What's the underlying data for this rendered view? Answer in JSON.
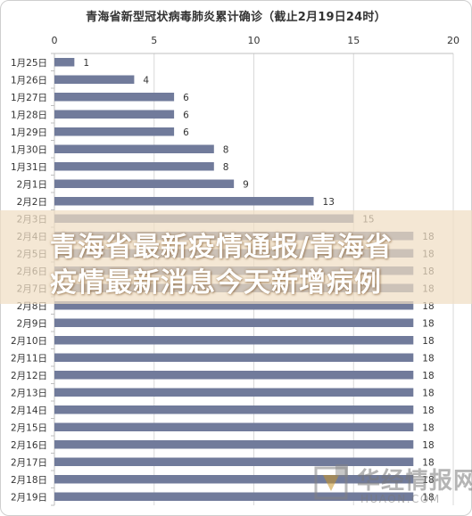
{
  "chart_data": {
    "type": "bar",
    "orientation": "horizontal",
    "title": "青海省新型冠状病毒肺炎累计确诊（截止2月19日24时）",
    "xlabel": "",
    "ylabel": "",
    "xlim": [
      0,
      20
    ],
    "ticks": [
      0,
      5,
      10,
      15,
      20
    ],
    "grid": true,
    "legend": "none",
    "categories": [
      "1月25日",
      "1月26日",
      "1月27日",
      "1月28日",
      "1月29日",
      "1月30日",
      "1月31日",
      "2月1日",
      "2月2日",
      "2月3日",
      "2月4日",
      "2月5日",
      "2月6日",
      "2月7日",
      "2月8日",
      "2月9日",
      "2月10日",
      "2月11日",
      "2月12日",
      "2月13日",
      "2月14日",
      "2月15日",
      "2月16日",
      "2月17日",
      "2月18日",
      "2月19日"
    ],
    "values": [
      1,
      4,
      6,
      6,
      6,
      8,
      8,
      9,
      13,
      15,
      18,
      18,
      18,
      18,
      18,
      18,
      18,
      18,
      18,
      18,
      18,
      18,
      18,
      18,
      18,
      18
    ]
  },
  "colors": {
    "bar": "#717b9b",
    "grid": "#d9d9d9",
    "axis": "#bfbfbf",
    "text": "#333333"
  },
  "banner": {
    "line1": "青海省最新疫情通报/青海省",
    "line2": "疫情最新消息今天新增病例"
  },
  "watermark": {
    "name": "华经情报网",
    "url": "HUAON.COM",
    "logo_icon": "huajing-logo-icon"
  }
}
